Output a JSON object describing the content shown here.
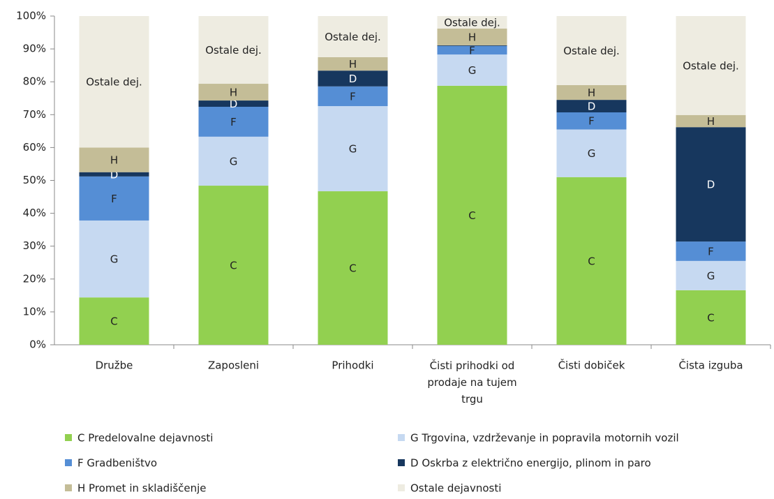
{
  "chart_data": {
    "type": "stacked_bar",
    "categories": [
      "Družbe",
      "Zaposleni",
      "Prihodki",
      "Čisti prihodki od prodaje na tujem trgu",
      "Čisti dobiček",
      "Čista izguba"
    ],
    "series": [
      {
        "name": "C Predelovalne dejavnosti",
        "color": "#92d050",
        "values": [
          14.4,
          48.4,
          46.7,
          78.8,
          51.0,
          16.6
        ],
        "value_labels": [
          "C",
          "C",
          "C",
          "C",
          "C",
          "C"
        ]
      },
      {
        "name": "G Trgovina, vzdrževanje in popravila motornih vozil",
        "color": "#c6d9f1",
        "values": [
          23.4,
          14.9,
          25.9,
          9.5,
          14.5,
          8.9
        ],
        "value_labels": [
          "G",
          "G",
          "G",
          "G",
          "G",
          "G"
        ]
      },
      {
        "name": "F Gradbeništvo",
        "color": "#558ed5",
        "values": [
          13.4,
          9.1,
          6.0,
          2.6,
          5.2,
          5.9
        ],
        "value_labels": [
          "F",
          "F",
          "F",
          "F",
          "F",
          "F"
        ]
      },
      {
        "name": "D Oskrba z električno energijo, plinom in paro",
        "color": "#17375e",
        "values": [
          1.3,
          1.9,
          4.8,
          0.2,
          3.8,
          34.8
        ],
        "value_labels": [
          "D",
          "D",
          "D",
          null,
          "D",
          "D"
        ]
      },
      {
        "name": "H Promet in skladiščenje",
        "color": "#c4bd97",
        "values": [
          7.5,
          5.1,
          4.1,
          5.1,
          4.5,
          3.7
        ],
        "value_labels": [
          "H",
          "H",
          "H",
          "H",
          "H",
          "H"
        ]
      },
      {
        "name": "Ostale dejavnosti",
        "color": "#eeece1",
        "values": [
          40.0,
          20.6,
          12.5,
          3.8,
          21.0,
          30.1
        ],
        "value_labels": [
          "Ostale dej.",
          "Ostale dej.",
          "Ostale dej.",
          "Ostale dej.",
          "Ostale dej.",
          "Ostale dej."
        ]
      }
    ],
    "ylim": [
      0,
      100
    ],
    "yticks": [
      {
        "value": 0,
        "label": "0%"
      },
      {
        "value": 10,
        "label": "10%"
      },
      {
        "value": 20,
        "label": "20%"
      },
      {
        "value": 30,
        "label": "30%"
      },
      {
        "value": 40,
        "label": "40%"
      },
      {
        "value": 50,
        "label": "50%"
      },
      {
        "value": 60,
        "label": "60%"
      },
      {
        "value": 70,
        "label": "70%"
      },
      {
        "value": 80,
        "label": "80%"
      },
      {
        "value": 90,
        "label": "90%"
      },
      {
        "value": 100,
        "label": "100%"
      }
    ],
    "grid": false,
    "legend": "bottom"
  }
}
